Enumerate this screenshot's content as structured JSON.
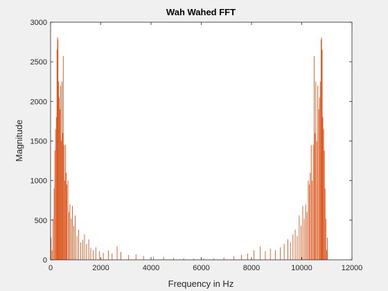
{
  "chart_data": {
    "type": "line",
    "title": "Wah Wahed FFT",
    "xlabel": "Frequency in Hz",
    "ylabel": "Magnitude",
    "xlim": [
      0,
      12000
    ],
    "ylim": [
      0,
      3000
    ],
    "xticks": [
      "0",
      "2000",
      "4000",
      "6000",
      "8000",
      "10000",
      "12000"
    ],
    "yticks": [
      "0",
      "500",
      "1000",
      "1500",
      "2000",
      "2500",
      "3000"
    ],
    "grid": false,
    "line_color": "#d95319",
    "peaks": [
      {
        "x": 20,
        "y": 280
      },
      {
        "x": 60,
        "y": 120
      },
      {
        "x": 100,
        "y": 520
      },
      {
        "x": 140,
        "y": 900
      },
      {
        "x": 170,
        "y": 1380
      },
      {
        "x": 200,
        "y": 1650
      },
      {
        "x": 230,
        "y": 1800
      },
      {
        "x": 255,
        "y": 2650
      },
      {
        "x": 275,
        "y": 2810
      },
      {
        "x": 295,
        "y": 2780
      },
      {
        "x": 320,
        "y": 2250
      },
      {
        "x": 345,
        "y": 2050
      },
      {
        "x": 370,
        "y": 1900
      },
      {
        "x": 400,
        "y": 2200
      },
      {
        "x": 430,
        "y": 1500
      },
      {
        "x": 455,
        "y": 2250
      },
      {
        "x": 480,
        "y": 1600
      },
      {
        "x": 505,
        "y": 2570
      },
      {
        "x": 535,
        "y": 1450
      },
      {
        "x": 560,
        "y": 1000
      },
      {
        "x": 590,
        "y": 1450
      },
      {
        "x": 620,
        "y": 1100
      },
      {
        "x": 650,
        "y": 950
      },
      {
        "x": 690,
        "y": 1000
      },
      {
        "x": 730,
        "y": 600
      },
      {
        "x": 770,
        "y": 700
      },
      {
        "x": 820,
        "y": 520
      },
      {
        "x": 870,
        "y": 680
      },
      {
        "x": 920,
        "y": 430
      },
      {
        "x": 980,
        "y": 560
      },
      {
        "x": 1050,
        "y": 300
      },
      {
        "x": 1120,
        "y": 380
      },
      {
        "x": 1200,
        "y": 220
      },
      {
        "x": 1280,
        "y": 250
      },
      {
        "x": 1350,
        "y": 320
      },
      {
        "x": 1430,
        "y": 200
      },
      {
        "x": 1520,
        "y": 260
      },
      {
        "x": 1600,
        "y": 150
      },
      {
        "x": 1700,
        "y": 120
      },
      {
        "x": 1800,
        "y": 160
      },
      {
        "x": 1950,
        "y": 110
      },
      {
        "x": 2100,
        "y": 90
      },
      {
        "x": 2300,
        "y": 120
      },
      {
        "x": 2450,
        "y": 80
      },
      {
        "x": 2650,
        "y": 170
      },
      {
        "x": 2800,
        "y": 100
      },
      {
        "x": 3100,
        "y": 60
      },
      {
        "x": 3400,
        "y": 70
      },
      {
        "x": 3700,
        "y": 50
      },
      {
        "x": 4100,
        "y": 40
      },
      {
        "x": 4500,
        "y": 35
      },
      {
        "x": 4900,
        "y": 25
      },
      {
        "x": 5300,
        "y": 20
      },
      {
        "x": 5700,
        "y": 15
      },
      {
        "x": 6100,
        "y": 15
      },
      {
        "x": 6500,
        "y": 20
      },
      {
        "x": 6900,
        "y": 30
      },
      {
        "x": 7300,
        "y": 45
      },
      {
        "x": 7600,
        "y": 60
      },
      {
        "x": 7850,
        "y": 80
      },
      {
        "x": 8100,
        "y": 120
      },
      {
        "x": 8350,
        "y": 170
      },
      {
        "x": 8550,
        "y": 110
      },
      {
        "x": 8750,
        "y": 140
      },
      {
        "x": 8950,
        "y": 120
      },
      {
        "x": 9150,
        "y": 160
      },
      {
        "x": 9300,
        "y": 200
      },
      {
        "x": 9450,
        "y": 260
      },
      {
        "x": 9550,
        "y": 220
      },
      {
        "x": 9650,
        "y": 320
      },
      {
        "x": 9740,
        "y": 380
      },
      {
        "x": 9820,
        "y": 300
      },
      {
        "x": 9900,
        "y": 560
      },
      {
        "x": 9970,
        "y": 430
      },
      {
        "x": 10040,
        "y": 680
      },
      {
        "x": 10100,
        "y": 520
      },
      {
        "x": 10160,
        "y": 700
      },
      {
        "x": 10210,
        "y": 600
      },
      {
        "x": 10260,
        "y": 1000
      },
      {
        "x": 10300,
        "y": 950
      },
      {
        "x": 10340,
        "y": 1100
      },
      {
        "x": 10380,
        "y": 1450
      },
      {
        "x": 10420,
        "y": 1000
      },
      {
        "x": 10460,
        "y": 1450
      },
      {
        "x": 10500,
        "y": 2570
      },
      {
        "x": 10530,
        "y": 1600
      },
      {
        "x": 10560,
        "y": 2250
      },
      {
        "x": 10600,
        "y": 1500
      },
      {
        "x": 10640,
        "y": 2200
      },
      {
        "x": 10680,
        "y": 1900
      },
      {
        "x": 10710,
        "y": 2050
      },
      {
        "x": 10740,
        "y": 2250
      },
      {
        "x": 10770,
        "y": 2780
      },
      {
        "x": 10790,
        "y": 2810
      },
      {
        "x": 10815,
        "y": 2650
      },
      {
        "x": 10840,
        "y": 1800
      },
      {
        "x": 10870,
        "y": 1650
      },
      {
        "x": 10900,
        "y": 1380
      },
      {
        "x": 10930,
        "y": 900
      },
      {
        "x": 10960,
        "y": 520
      },
      {
        "x": 10990,
        "y": 120
      },
      {
        "x": 11020,
        "y": 280
      }
    ]
  }
}
